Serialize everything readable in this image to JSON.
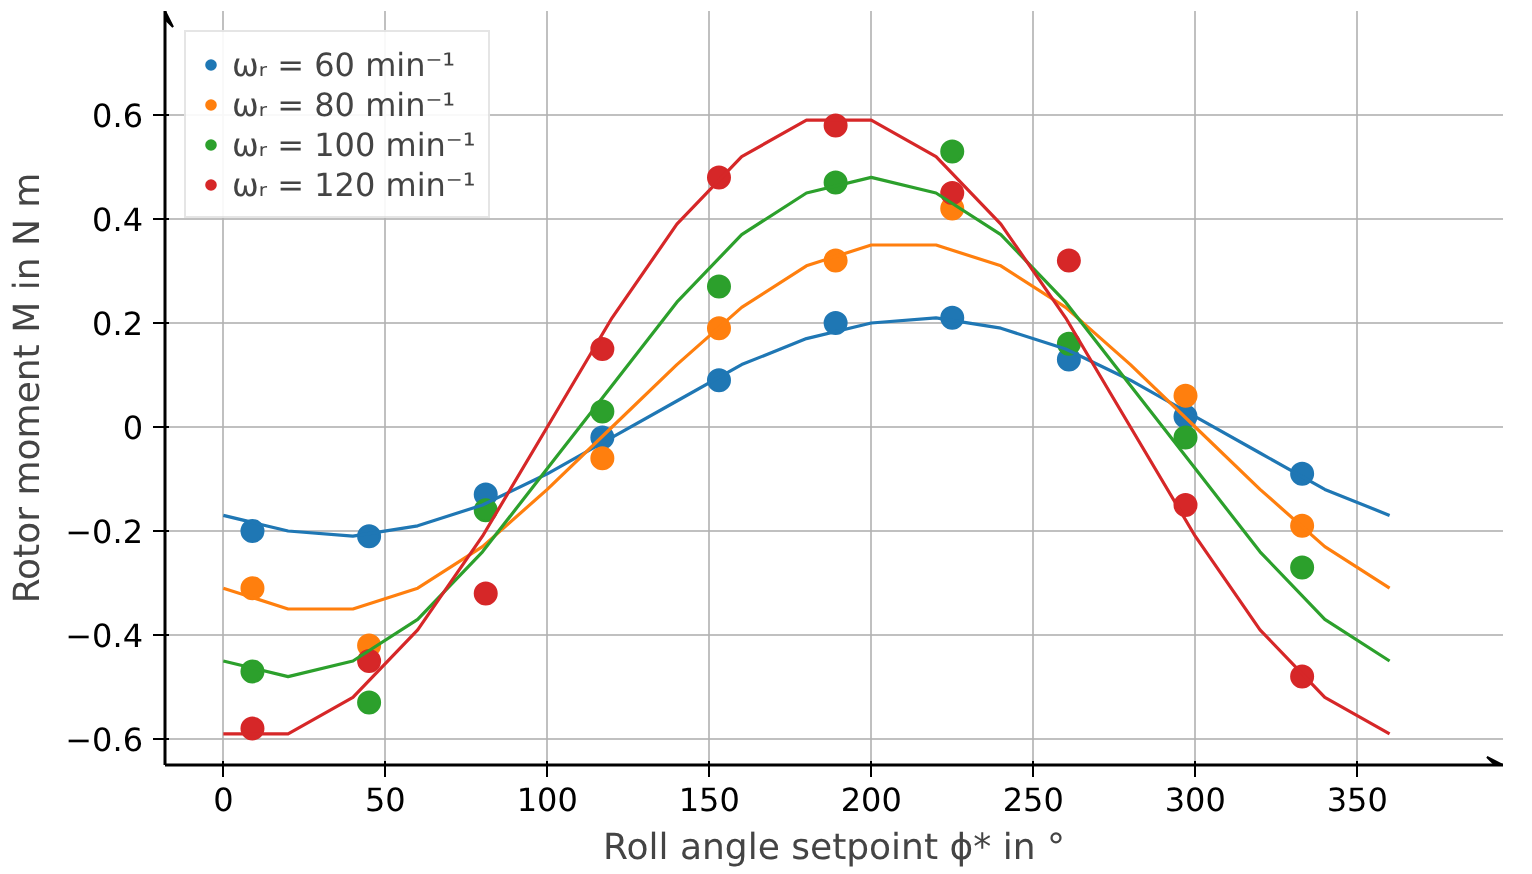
{
  "chart_data": {
    "type": "scatter",
    "xlabel": "Roll angle setpoint ϕ* in °",
    "ylabel": "Rotor moment M in N m",
    "x": [
      9,
      45,
      81,
      117,
      153,
      189,
      225,
      261,
      297,
      333
    ],
    "series": [
      {
        "name": "ωᵣ = 60 min⁻¹",
        "color": "#1f77b4",
        "values": [
          -0.2,
          -0.21,
          -0.13,
          -0.02,
          0.09,
          0.2,
          0.21,
          0.13,
          0.02,
          -0.09
        ]
      },
      {
        "name": "ωᵣ = 80 min⁻¹",
        "color": "#ff7f0e",
        "values": [
          -0.31,
          -0.42,
          null,
          -0.06,
          0.19,
          0.32,
          0.42,
          null,
          0.06,
          -0.19
        ]
      },
      {
        "name": "ωᵣ = 100 min⁻¹",
        "color": "#2ca02c",
        "values": [
          -0.47,
          -0.53,
          -0.16,
          0.03,
          0.27,
          0.47,
          0.53,
          0.16,
          -0.02,
          -0.27
        ]
      },
      {
        "name": "ωᵣ = 120 min⁻¹",
        "color": "#d62728",
        "values": [
          -0.58,
          -0.45,
          -0.32,
          0.15,
          0.48,
          0.58,
          0.45,
          0.32,
          -0.15,
          -0.48
        ]
      },
      {
        "type": "line",
        "marker": "none",
        "color": "#1f77b4",
        "x": [
          0,
          20,
          40,
          60,
          80,
          100,
          120,
          140,
          160,
          180,
          200,
          220,
          240,
          260,
          280,
          300,
          320,
          340,
          360
        ],
        "values": [
          -0.17,
          -0.2,
          -0.21,
          -0.19,
          -0.15,
          -0.09,
          -0.02,
          0.05,
          0.12,
          0.17,
          0.2,
          0.21,
          0.19,
          0.15,
          0.09,
          0.02,
          -0.05,
          -0.12,
          -0.17
        ]
      },
      {
        "type": "line",
        "marker": "none",
        "color": "#ff7f0e",
        "x": [
          0,
          20,
          40,
          60,
          80,
          100,
          120,
          140,
          160,
          180,
          200,
          220,
          240,
          260,
          280,
          300,
          320,
          340,
          360
        ],
        "values": [
          -0.31,
          -0.35,
          -0.35,
          -0.31,
          -0.23,
          -0.12,
          0,
          0.12,
          0.23,
          0.31,
          0.35,
          0.35,
          0.31,
          0.23,
          0.12,
          0,
          -0.12,
          -0.23,
          -0.31
        ]
      },
      {
        "type": "line",
        "marker": "none",
        "color": "#2ca02c",
        "x": [
          0,
          20,
          40,
          60,
          80,
          100,
          120,
          140,
          160,
          180,
          200,
          220,
          240,
          260,
          280,
          300,
          320,
          340,
          360
        ],
        "values": [
          -0.45,
          -0.48,
          -0.45,
          -0.37,
          -0.24,
          -0.08,
          0.08,
          0.24,
          0.37,
          0.45,
          0.48,
          0.45,
          0.37,
          0.24,
          0.08,
          -0.08,
          -0.24,
          -0.37,
          -0.45
        ]
      },
      {
        "type": "line",
        "marker": "none",
        "color": "#d62728",
        "x": [
          0,
          20,
          40,
          60,
          80,
          100,
          120,
          140,
          160,
          180,
          200,
          220,
          240,
          260,
          280,
          300,
          320,
          340,
          360
        ],
        "values": [
          -0.59,
          -0.59,
          -0.52,
          -0.39,
          -0.21,
          0,
          0.21,
          0.39,
          0.52,
          0.59,
          0.59,
          0.52,
          0.39,
          0.21,
          0,
          -0.21,
          -0.39,
          -0.52,
          -0.59
        ]
      }
    ],
    "xlim": [
      -18,
      395
    ],
    "ylim": [
      -0.65,
      0.8
    ],
    "xticks": [
      0,
      50,
      100,
      150,
      200,
      250,
      300,
      350
    ],
    "yticks": [
      {
        "value": -0.6,
        "label": "−0.6"
      },
      {
        "value": -0.4,
        "label": "−0.4"
      },
      {
        "value": -0.2,
        "label": "−0.2"
      },
      0,
      0.2,
      0.4,
      0.6
    ],
    "grid": true,
    "legend": "top left",
    "marker": "circle"
  }
}
